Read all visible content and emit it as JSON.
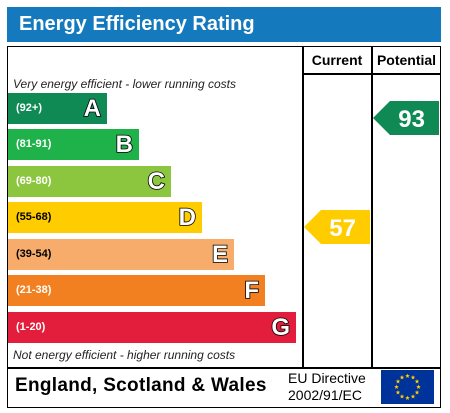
{
  "title": "Energy Efficiency Rating",
  "columns": {
    "current": "Current",
    "potential": "Potential"
  },
  "notes": {
    "top": "Very energy efficient - lower running costs",
    "bottom": "Not energy efficient - higher running costs"
  },
  "bands": [
    {
      "range": "(92+)",
      "letter": "A",
      "color": "#0f8a55"
    },
    {
      "range": "(81-91)",
      "letter": "B",
      "color": "#1fb24a"
    },
    {
      "range": "(69-80)",
      "letter": "C",
      "color": "#8cc63f"
    },
    {
      "range": "(55-68)",
      "letter": "D",
      "color": "#ffcc00"
    },
    {
      "range": "(39-54)",
      "letter": "E",
      "color": "#f7ac6b"
    },
    {
      "range": "(21-38)",
      "letter": "F",
      "color": "#f28020"
    },
    {
      "range": "(1-20)",
      "letter": "G",
      "color": "#e31d3c"
    }
  ],
  "current": {
    "value": "57",
    "band": "D",
    "color": "#ffcc00"
  },
  "potential": {
    "value": "93",
    "band": "A",
    "color": "#0f8a55"
  },
  "footer": {
    "region": "England, Scotland & Wales",
    "directive_line1": "EU Directive",
    "directive_line2": "2002/91/EC"
  },
  "icons": {
    "eu_flag": "eu-flag-icon"
  }
}
